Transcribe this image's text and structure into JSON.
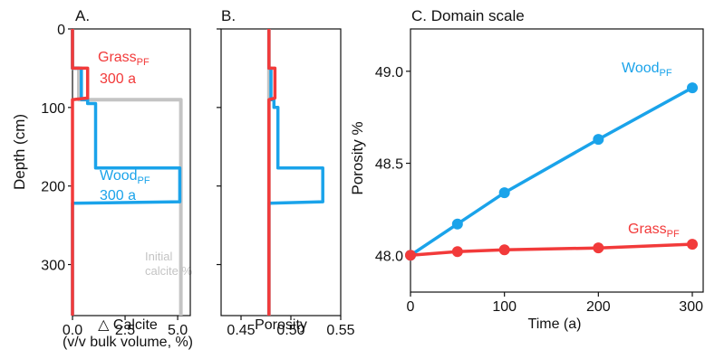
{
  "colors": {
    "grass": "#f23a3a",
    "wood": "#1aa3ea",
    "initial": "#c4c4c4",
    "axis": "#111111"
  },
  "chart_data": [
    {
      "panel": "A.",
      "type": "line",
      "orientation": "depth-profile",
      "xlabel_lines": [
        "△ Calcite",
        "(v/v bulk volume, %)"
      ],
      "ylabel": "Depth (cm)",
      "xlim": [
        0,
        5.6
      ],
      "ylim": [
        0,
        365
      ],
      "y_inverted": true,
      "xticks": [
        0.0,
        2.5,
        5.0
      ],
      "xtick_labels": [
        "0.0",
        "2.5",
        "5.0"
      ],
      "yticks": [
        0,
        100,
        200,
        300
      ],
      "ytick_labels": [
        "0",
        "100",
        "200",
        "300"
      ],
      "annotations": [
        {
          "series": "grass",
          "main": "Grass",
          "sub": "PF",
          "line2": "300 a"
        },
        {
          "series": "wood",
          "main": "Wood",
          "sub": "PF",
          "line2": "300 a"
        },
        {
          "series": "initial",
          "line1": "Initial",
          "line2": "calcite %"
        }
      ],
      "series": [
        {
          "key": "initial",
          "points": [
            [
              0,
              0
            ],
            [
              0,
              50
            ],
            [
              0.3,
              50
            ],
            [
              0.3,
              90
            ],
            [
              5.15,
              90
            ],
            [
              5.15,
              365
            ]
          ]
        },
        {
          "key": "wood",
          "points": [
            [
              0,
              0
            ],
            [
              0,
              50
            ],
            [
              0.42,
              50
            ],
            [
              0.42,
              90
            ],
            [
              0.72,
              90
            ],
            [
              0.72,
              95
            ],
            [
              1.1,
              95
            ],
            [
              1.1,
              177
            ],
            [
              5.1,
              177
            ],
            [
              5.1,
              220
            ],
            [
              0,
              222
            ],
            [
              0,
              365
            ]
          ]
        },
        {
          "key": "grass",
          "points": [
            [
              0,
              0
            ],
            [
              0,
              50
            ],
            [
              0.72,
              50
            ],
            [
              0.72,
              88
            ],
            [
              0,
              90
            ],
            [
              0,
              365
            ]
          ]
        }
      ]
    },
    {
      "panel": "B.",
      "type": "line",
      "orientation": "depth-profile",
      "xlabel": "Porosity",
      "xlim": [
        0.43,
        0.55
      ],
      "ylim": [
        0,
        365
      ],
      "y_inverted": true,
      "xticks": [
        0.45,
        0.5,
        0.55
      ],
      "xtick_labels": [
        "0.45",
        "0.50",
        "0.55"
      ],
      "yticks": [
        0,
        100,
        200,
        300
      ],
      "series": [
        {
          "key": "initial",
          "points": [
            [
              0.478,
              0
            ],
            [
              0.478,
              365
            ]
          ]
        },
        {
          "key": "wood",
          "points": [
            [
              0.478,
              0
            ],
            [
              0.478,
              50
            ],
            [
              0.48,
              50
            ],
            [
              0.48,
              90
            ],
            [
              0.483,
              90
            ],
            [
              0.483,
              100
            ],
            [
              0.487,
              100
            ],
            [
              0.487,
              177
            ],
            [
              0.532,
              177
            ],
            [
              0.532,
              220
            ],
            [
              0.478,
              222
            ],
            [
              0.478,
              365
            ]
          ]
        },
        {
          "key": "grass",
          "points": [
            [
              0.478,
              0
            ],
            [
              0.478,
              50
            ],
            [
              0.484,
              50
            ],
            [
              0.484,
              88
            ],
            [
              0.478,
              90
            ],
            [
              0.478,
              365
            ]
          ]
        }
      ]
    },
    {
      "panel": "C. Domain scale",
      "type": "line",
      "xlabel": "Time (a)",
      "ylabel": "Porosity %",
      "xlim": [
        0,
        300
      ],
      "ylim": [
        47.8,
        49.23
      ],
      "xticks": [
        0,
        100,
        200,
        300
      ],
      "xtick_labels": [
        "0",
        "100",
        "200",
        "300"
      ],
      "yticks": [
        48.0,
        48.5,
        49.0
      ],
      "ytick_labels": [
        "48.0",
        "48.5",
        "49.0"
      ],
      "series": [
        {
          "key": "wood",
          "main": "Wood",
          "sub": "PF",
          "x": [
            0,
            50,
            100,
            200,
            300
          ],
          "y": [
            48.0,
            48.17,
            48.34,
            48.63,
            48.91
          ]
        },
        {
          "key": "grass",
          "main": "Grass",
          "sub": "PF",
          "x": [
            0,
            50,
            100,
            200,
            300
          ],
          "y": [
            48.0,
            48.02,
            48.03,
            48.04,
            48.06
          ]
        }
      ]
    }
  ]
}
